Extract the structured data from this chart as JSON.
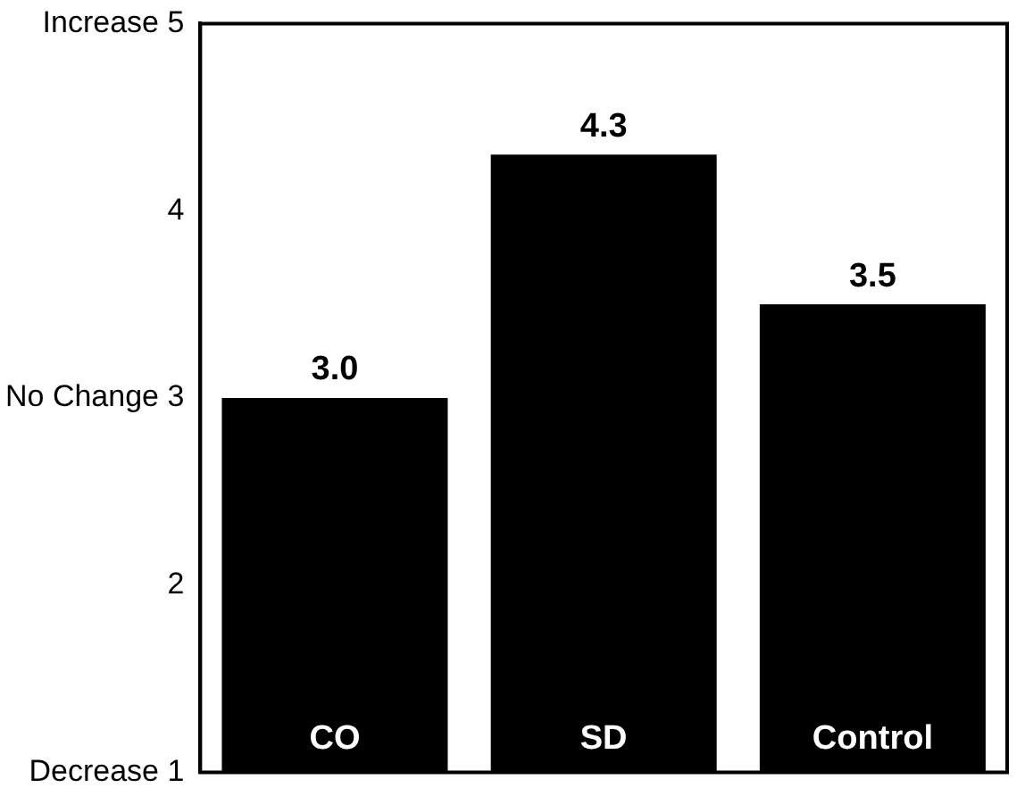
{
  "chart_data": {
    "type": "bar",
    "categories": [
      "CO",
      "SD",
      "Control"
    ],
    "values": [
      3.0,
      4.3,
      3.5
    ],
    "color": "#000000",
    "ylim": [
      1,
      5
    ],
    "yticks": [
      {
        "value": 1,
        "label": "Decrease 1"
      },
      2,
      {
        "value": 3,
        "label": "No Change 3"
      },
      4,
      {
        "value": 5,
        "label": "Increase 5"
      }
    ],
    "value_labels": [
      "3.0",
      "4.3",
      "3.5"
    ],
    "grid": false,
    "legend": false
  }
}
